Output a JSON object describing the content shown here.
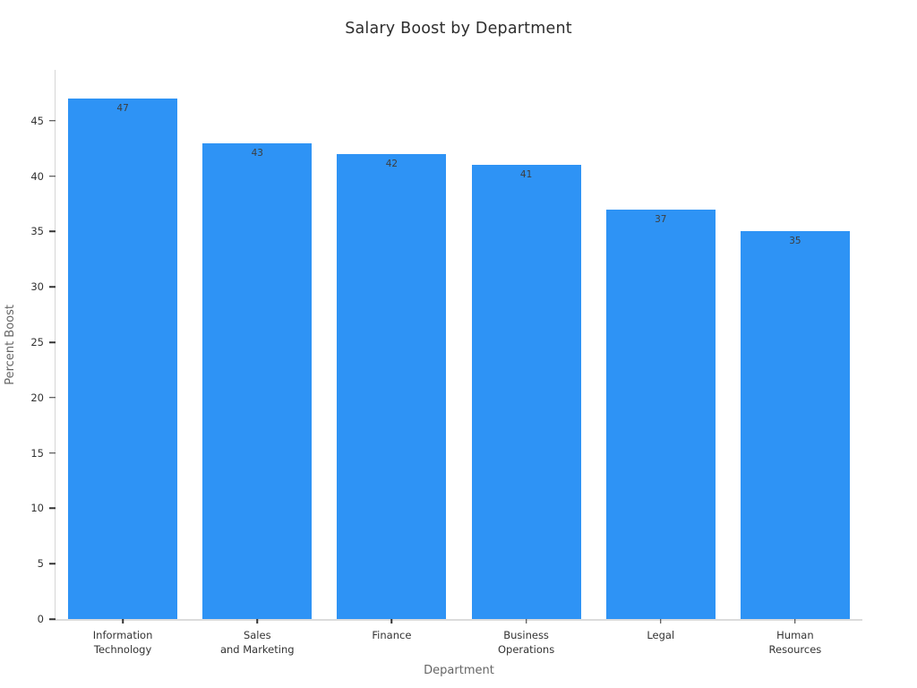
{
  "chart_data": {
    "type": "bar",
    "title": "Salary Boost by Department",
    "xlabel": "Department",
    "ylabel": "Percent Boost",
    "categories": [
      "Information\nTechnology",
      "Sales\nand Marketing",
      "Finance",
      "Business\nOperations",
      "Legal",
      "Human\nResources"
    ],
    "values": [
      47,
      43,
      42,
      41,
      37,
      35
    ],
    "bar_labels": [
      "47",
      "43",
      "42",
      "41",
      "37",
      "35"
    ],
    "yticks": [
      0,
      5,
      10,
      15,
      20,
      25,
      30,
      35,
      40,
      45
    ],
    "ylim": [
      0,
      49.6
    ],
    "grid": false,
    "legend": "none",
    "colors": {
      "bar": "#2e93f5",
      "title": "#2e2e2e",
      "tick_label": "#333333",
      "tick_mark": "#333333",
      "axis_label": "#666666",
      "value_label": "#3d3d3d",
      "axis_line": "#d6d6d6"
    }
  }
}
